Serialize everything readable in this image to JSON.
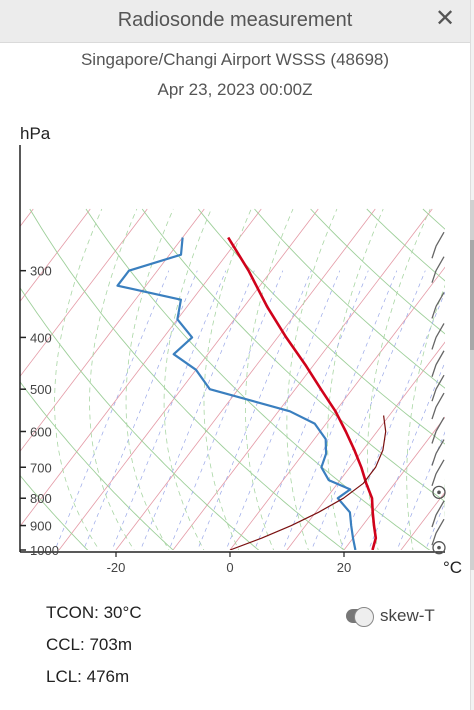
{
  "header": {
    "title": "Radiosonde measurement",
    "close_label": "✕"
  },
  "station": "Singapore/Changi Airport WSSS (48698)",
  "datetime": "Apr 23, 2023 00:00Z",
  "chart_data": {
    "type": "line",
    "title": "",
    "y_unit": "hPa",
    "x_unit": "°C",
    "pressure_ticks": [
      300,
      400,
      500,
      600,
      700,
      800,
      900,
      1000
    ],
    "temp_ticks": [
      -20,
      0,
      20
    ],
    "skew": true,
    "series": [
      {
        "name": "temperature",
        "color": "#d0021b",
        "p": [
          1000,
          950,
          900,
          850,
          800,
          750,
          700,
          650,
          600,
          550,
          500,
          450,
          400,
          350,
          300,
          260
        ],
        "t": [
          25,
          24,
          22,
          20,
          18,
          15,
          12,
          8.5,
          4.5,
          0,
          -5.5,
          -11.5,
          -18.5,
          -26,
          -34,
          -42
        ]
      },
      {
        "name": "dewpoint",
        "color": "#3a7fbf",
        "p": [
          1000,
          950,
          900,
          850,
          800,
          770,
          740,
          700,
          660,
          620,
          580,
          550,
          500,
          460,
          430,
          400,
          370,
          340,
          320,
          300,
          280,
          260
        ],
        "t": [
          22,
          20,
          18,
          16,
          12,
          13,
          8,
          5,
          4,
          2,
          -2,
          -8,
          -25,
          -30,
          -36,
          -35,
          -40,
          -42,
          -55,
          -55,
          -48,
          -50
        ]
      },
      {
        "name": "parcel",
        "color": "#7a1010",
        "p": [
          1000,
          950,
          900,
          850,
          800,
          750,
          700,
          650,
          600,
          560
        ],
        "t": [
          0,
          4,
          7.5,
          10.5,
          13,
          14.5,
          14.5,
          13.5,
          11.5,
          9
        ]
      }
    ],
    "wind_barbs": [
      {
        "p": 990,
        "type": "calm"
      },
      {
        "p": 930,
        "type": "barb"
      },
      {
        "p": 860,
        "type": "barb"
      },
      {
        "p": 780,
        "type": "calm"
      },
      {
        "p": 720,
        "type": "barb"
      },
      {
        "p": 660,
        "type": "barb"
      },
      {
        "p": 600,
        "type": "barb"
      },
      {
        "p": 540,
        "type": "barb"
      },
      {
        "p": 500,
        "type": "barb"
      },
      {
        "p": 450,
        "type": "barb"
      },
      {
        "p": 400,
        "type": "barb"
      },
      {
        "p": 350,
        "type": "barb"
      },
      {
        "p": 300,
        "type": "barb"
      },
      {
        "p": 270,
        "type": "barb"
      }
    ]
  },
  "stats": {
    "tcon": "TCON: 30°C",
    "ccl": "CCL: 703m",
    "lcl": "LCL: 476m"
  },
  "toggle": {
    "label": "skew-T",
    "on": true
  }
}
